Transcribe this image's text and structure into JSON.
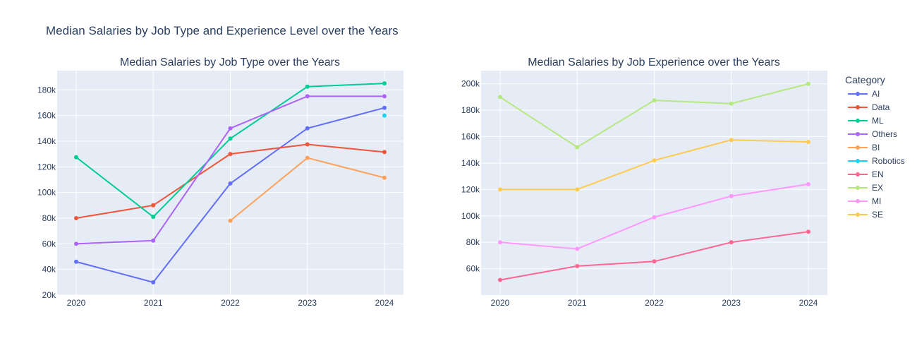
{
  "figure": {
    "title": "Median Salaries by Job Type and Experience Level over the Years"
  },
  "legend": {
    "title": "Category",
    "entries": [
      {
        "name": "AI",
        "color": "#636efa"
      },
      {
        "name": "Data",
        "color": "#ef553b"
      },
      {
        "name": "ML",
        "color": "#00cc96"
      },
      {
        "name": "Others",
        "color": "#ab63fa"
      },
      {
        "name": "BI",
        "color": "#ffa15a"
      },
      {
        "name": "Robotics",
        "color": "#19d3f3"
      },
      {
        "name": "EN",
        "color": "#ff6692"
      },
      {
        "name": "EX",
        "color": "#b6e880"
      },
      {
        "name": "MI",
        "color": "#ff97ff"
      },
      {
        "name": "SE",
        "color": "#fecb52"
      }
    ],
    "placement": "right"
  },
  "chart_data": [
    {
      "type": "line",
      "title": "Median Salaries by Job Type over the Years",
      "x": [
        2020,
        2021,
        2022,
        2023,
        2024
      ],
      "ylim": [
        20000,
        195000
      ],
      "yticks": [
        20000,
        40000,
        60000,
        80000,
        100000,
        120000,
        140000,
        160000,
        180000
      ],
      "ytick_labels": [
        "20k",
        "40k",
        "60k",
        "80k",
        "100k",
        "120k",
        "140k",
        "160k",
        "180k"
      ],
      "grid": true,
      "series": [
        {
          "name": "AI",
          "color": "#636efa",
          "values": [
            46000,
            30000,
            107000,
            150000,
            166000
          ]
        },
        {
          "name": "Data",
          "color": "#ef553b",
          "values": [
            80000,
            90000,
            130000,
            137500,
            131500
          ]
        },
        {
          "name": "ML",
          "color": "#00cc96",
          "values": [
            127500,
            81000,
            142000,
            182500,
            185000
          ]
        },
        {
          "name": "Others",
          "color": "#ab63fa",
          "values": [
            60000,
            62500,
            150000,
            175000,
            175000
          ]
        },
        {
          "name": "BI",
          "color": "#ffa15a",
          "values": [
            null,
            null,
            78000,
            127000,
            111500
          ]
        },
        {
          "name": "Robotics",
          "color": "#19d3f3",
          "values": [
            null,
            null,
            null,
            null,
            160000
          ]
        }
      ]
    },
    {
      "type": "line",
      "title": "Median Salaries by Job Experience over the Years",
      "x": [
        2020,
        2021,
        2022,
        2023,
        2024
      ],
      "ylim": [
        40000,
        210000
      ],
      "yticks": [
        60000,
        80000,
        100000,
        120000,
        140000,
        160000,
        180000,
        200000
      ],
      "ytick_labels": [
        "60k",
        "80k",
        "100k",
        "120k",
        "140k",
        "160k",
        "180k",
        "200k"
      ],
      "grid": true,
      "series": [
        {
          "name": "EN",
          "color": "#ff6692",
          "values": [
            51500,
            62000,
            65500,
            80000,
            88000
          ]
        },
        {
          "name": "EX",
          "color": "#b6e880",
          "values": [
            190000,
            152000,
            187500,
            185000,
            200000
          ]
        },
        {
          "name": "MI",
          "color": "#ff97ff",
          "values": [
            80000,
            75000,
            99000,
            115000,
            124000
          ]
        },
        {
          "name": "SE",
          "color": "#fecb52",
          "values": [
            120000,
            120000,
            142000,
            157500,
            156000
          ]
        }
      ]
    }
  ]
}
